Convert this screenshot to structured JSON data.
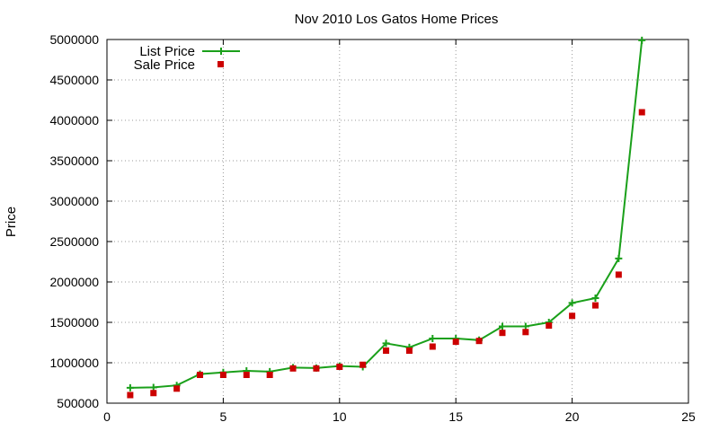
{
  "chart_data": {
    "type": "line",
    "title": "Nov 2010 Los Gatos Home Prices",
    "xlabel": "",
    "ylabel": "Price",
    "xlim": [
      0,
      25
    ],
    "ylim": [
      500000,
      5000000
    ],
    "x_ticks": [
      0,
      5,
      10,
      15,
      20,
      25
    ],
    "y_ticks": [
      500000,
      1000000,
      1500000,
      2000000,
      2500000,
      3000000,
      3500000,
      4000000,
      4500000,
      5000000
    ],
    "grid": true,
    "legend_position": "top-left",
    "series": [
      {
        "name": "List Price",
        "style": "line-with-plus-markers",
        "color": "#1aa01a",
        "x": [
          1,
          2,
          3,
          4,
          5,
          6,
          7,
          8,
          9,
          10,
          11,
          12,
          13,
          14,
          15,
          16,
          17,
          18,
          19,
          20,
          21,
          22,
          23
        ],
        "values": [
          690000,
          695000,
          720000,
          860000,
          880000,
          900000,
          890000,
          940000,
          935000,
          960000,
          950000,
          1240000,
          1190000,
          1300000,
          1300000,
          1280000,
          1450000,
          1450000,
          1500000,
          1740000,
          1800000,
          2290000,
          4990000
        ]
      },
      {
        "name": "Sale Price",
        "style": "square-markers",
        "color": "#cc0000",
        "x": [
          1,
          2,
          3,
          4,
          5,
          6,
          7,
          8,
          9,
          10,
          11,
          12,
          13,
          14,
          15,
          16,
          17,
          18,
          19,
          20,
          21,
          22,
          23
        ],
        "values": [
          600000,
          625000,
          680000,
          850000,
          850000,
          850000,
          850000,
          930000,
          930000,
          950000,
          975000,
          1150000,
          1150000,
          1200000,
          1260000,
          1270000,
          1370000,
          1380000,
          1460000,
          1580000,
          1710000,
          2090000,
          4100000
        ]
      }
    ]
  }
}
